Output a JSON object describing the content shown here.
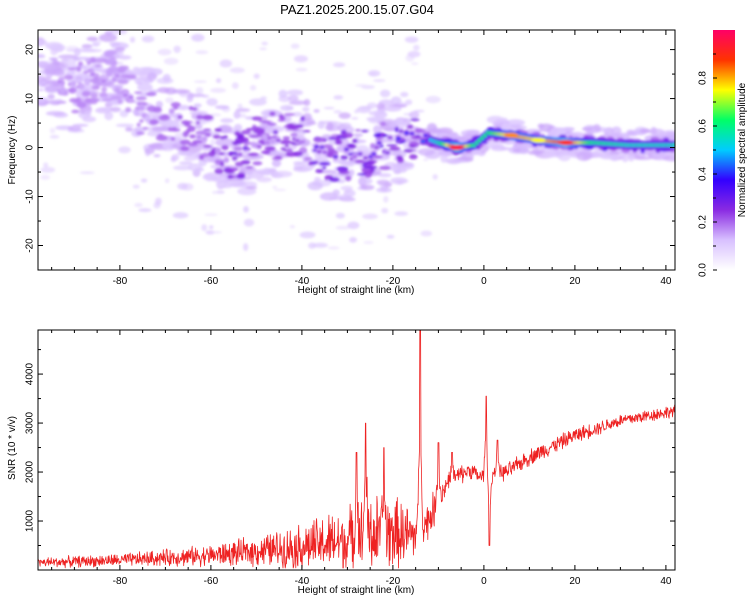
{
  "figure": {
    "title": "PAZ1.2025.200.15.07.G04"
  },
  "chart_data": [
    {
      "type": "heatmap",
      "xlabel": "Height of straight line (km)",
      "ylabel": "Frequency (Hz)",
      "xlim": [
        -98,
        42
      ],
      "ylim": [
        -25,
        24
      ],
      "xticks": [
        -80,
        -60,
        -40,
        -20,
        0,
        20,
        40
      ],
      "yticks": [
        -20,
        -10,
        0,
        10,
        20
      ],
      "colorbar": {
        "label": "Normalized spectral amplitude",
        "range": [
          0.0,
          1.0
        ],
        "ticks": [
          0.0,
          0.2,
          0.4,
          0.6,
          0.8
        ],
        "colormap": [
          "#ffffff",
          "#d8c0ff",
          "#8a2be2",
          "#3300ff",
          "#00ccff",
          "#00ff66",
          "#ffff00",
          "#ff3300",
          "#ff0066"
        ]
      },
      "ridge": [
        {
          "x": -97,
          "f": 14,
          "a": 0.12
        },
        {
          "x": -90,
          "f": 12,
          "a": 0.18
        },
        {
          "x": -82,
          "f": 15,
          "a": 0.15
        },
        {
          "x": -75,
          "f": 7,
          "a": 0.18
        },
        {
          "x": -68,
          "f": 6,
          "a": 0.2
        },
        {
          "x": -62,
          "f": 2,
          "a": 0.22
        },
        {
          "x": -55,
          "f": -2,
          "a": 0.28
        },
        {
          "x": -48,
          "f": 2,
          "a": 0.22
        },
        {
          "x": -42,
          "f": 3,
          "a": 0.25
        },
        {
          "x": -37,
          "f": -1,
          "a": 0.3
        },
        {
          "x": -32,
          "f": -2,
          "a": 0.28
        },
        {
          "x": -27,
          "f": -1,
          "a": 0.3
        },
        {
          "x": -22,
          "f": 0,
          "a": 0.32
        },
        {
          "x": -16,
          "f": 3,
          "a": 0.38
        },
        {
          "x": -10,
          "f": 1,
          "a": 0.55
        },
        {
          "x": -6,
          "f": 0,
          "a": 0.95
        },
        {
          "x": -2,
          "f": 0.5,
          "a": 0.6
        },
        {
          "x": 1,
          "f": 3,
          "a": 0.62
        },
        {
          "x": 6,
          "f": 2.5,
          "a": 0.82
        },
        {
          "x": 12,
          "f": 1.5,
          "a": 0.75
        },
        {
          "x": 18,
          "f": 1,
          "a": 0.9
        },
        {
          "x": 24,
          "f": 1,
          "a": 0.6
        },
        {
          "x": 32,
          "f": 0.5,
          "a": 0.55
        },
        {
          "x": 42,
          "f": 0.5,
          "a": 0.55
        }
      ]
    },
    {
      "type": "line",
      "xlabel": "Height of straight line (km)",
      "ylabel": "SNR (10 * v/v)",
      "xlim": [
        -98,
        42
      ],
      "ylim": [
        0,
        4900
      ],
      "xticks": [
        -80,
        -60,
        -40,
        -20,
        0,
        20,
        40
      ],
      "yticks": [
        1000,
        2000,
        3000,
        4000
      ],
      "color": "#ee2222",
      "envelope": [
        {
          "x": -98,
          "snr": 150,
          "noise": 120
        },
        {
          "x": -80,
          "snr": 200,
          "noise": 150
        },
        {
          "x": -60,
          "snr": 300,
          "noise": 250
        },
        {
          "x": -50,
          "snr": 380,
          "noise": 350
        },
        {
          "x": -40,
          "snr": 480,
          "noise": 550
        },
        {
          "x": -30,
          "snr": 600,
          "noise": 800
        },
        {
          "x": -25,
          "snr": 700,
          "noise": 1000
        },
        {
          "x": -20,
          "snr": 750,
          "noise": 900
        },
        {
          "x": -16,
          "snr": 700,
          "noise": 700
        },
        {
          "x": -13,
          "snr": 900,
          "noise": 500
        },
        {
          "x": -10,
          "snr": 1400,
          "noise": 400
        },
        {
          "x": -8,
          "snr": 1800,
          "noise": 250
        },
        {
          "x": -3,
          "snr": 2050,
          "noise": 200
        },
        {
          "x": -1,
          "snr": 1900,
          "noise": 200
        },
        {
          "x": 2,
          "snr": 1950,
          "noise": 200
        },
        {
          "x": 5,
          "snr": 2000,
          "noise": 200
        },
        {
          "x": 10,
          "snr": 2300,
          "noise": 200
        },
        {
          "x": 20,
          "snr": 2750,
          "noise": 180
        },
        {
          "x": 30,
          "snr": 3050,
          "noise": 160
        },
        {
          "x": 42,
          "snr": 3250,
          "noise": 150
        }
      ],
      "spikes": [
        {
          "x": -14,
          "snr": 4900
        },
        {
          "x": -26,
          "snr": 3000
        },
        {
          "x": -28,
          "snr": 2400
        },
        {
          "x": -22,
          "snr": 2500
        },
        {
          "x": -10,
          "snr": 2600
        },
        {
          "x": -7,
          "snr": 2400
        },
        {
          "x": 0.5,
          "snr": 3550
        },
        {
          "x": 1.2,
          "snr": 500
        },
        {
          "x": 3,
          "snr": 2650
        }
      ]
    }
  ]
}
